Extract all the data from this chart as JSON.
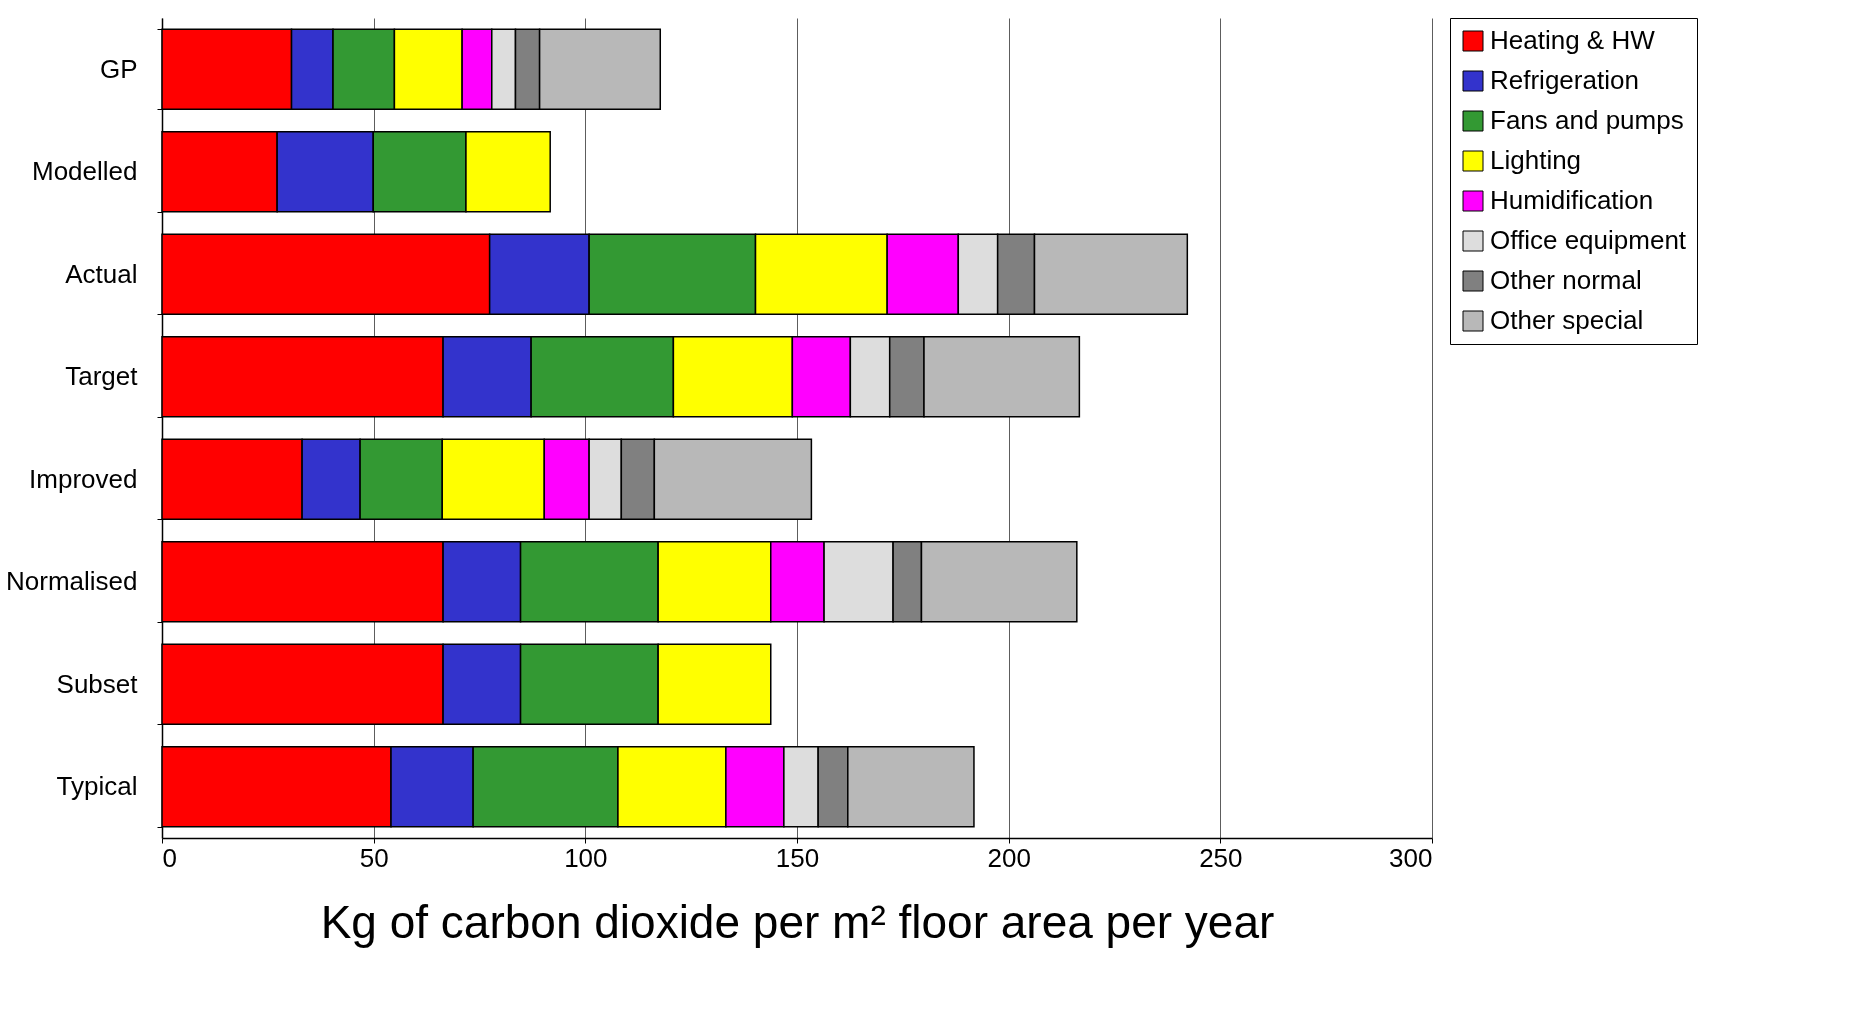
{
  "chart_data": {
    "type": "bar",
    "orientation": "horizontal",
    "stacked": true,
    "categories": [
      "GP",
      "Modelled",
      "Actual",
      "Target",
      "Improved",
      "Normalised",
      "Subset",
      "Typical"
    ],
    "series": [
      {
        "name": "Heating & HW",
        "color": "#ff0000",
        "values": [
          30.6,
          27.2,
          77.4,
          66.4,
          33.1,
          66.4,
          66.4,
          54.1
        ]
      },
      {
        "name": "Refrigeration",
        "color": "#3333cc",
        "values": [
          9.8,
          22.7,
          23.5,
          20.8,
          13.7,
          18.3,
          18.3,
          19.4
        ]
      },
      {
        "name": "Fans and pumps",
        "color": "#339933",
        "values": [
          14.5,
          21.9,
          39.3,
          33.6,
          19.4,
          32.5,
          32.5,
          34.2
        ]
      },
      {
        "name": "Lighting",
        "color": "#ffff00",
        "values": [
          16.0,
          19.9,
          31.1,
          28.1,
          24.1,
          26.6,
          26.6,
          25.5
        ]
      },
      {
        "name": "Humidification",
        "color": "#ff00ff",
        "values": [
          7.0,
          null,
          16.8,
          13.7,
          10.6,
          12.6,
          null,
          13.7
        ]
      },
      {
        "name": "Office equipment",
        "color": "#dddddd",
        "values": [
          5.6,
          null,
          9.3,
          9.3,
          7.6,
          16.3,
          null,
          8.1
        ]
      },
      {
        "name": "Other normal",
        "color": "#808080",
        "values": [
          5.7,
          null,
          8.7,
          8.1,
          7.8,
          6.7,
          null,
          7.0
        ]
      },
      {
        "name": "Other special",
        "color": "#b8b8b8",
        "values": [
          28.5,
          null,
          36.1,
          36.7,
          37.1,
          36.7,
          null,
          29.8
        ]
      }
    ],
    "xlim": [
      0,
      300
    ],
    "xticks": [
      0,
      50,
      100,
      150,
      200,
      250,
      300
    ],
    "xlabel": "Kg of carbon dioxide per m² floor area per year",
    "grid": "x",
    "legend": "right"
  }
}
